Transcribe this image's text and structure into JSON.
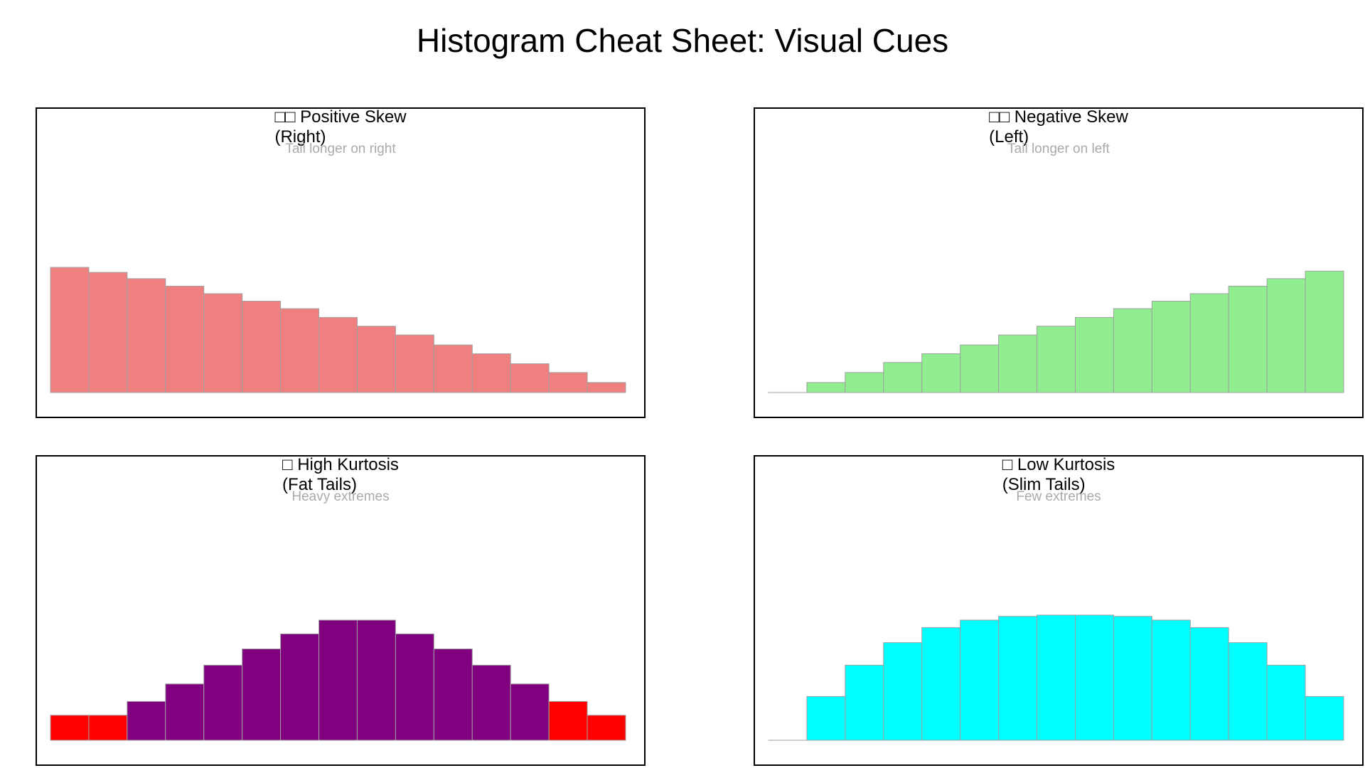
{
  "title": "Histogram Cheat Sheet: Visual Cues",
  "chart_data": [
    {
      "type": "bar",
      "title": "□□ Positive Skew\n(Right)",
      "subtitle": "Tail longer on right",
      "values": [
        100,
        96,
        91,
        85,
        79,
        73,
        67,
        60,
        53,
        46,
        38,
        31,
        23,
        16,
        8
      ],
      "colors": [
        "#f08080"
      ],
      "edgecolor": "#a0a0a0",
      "axes": "off"
    },
    {
      "type": "bar",
      "title": "□□ Negative Skew\n(Left)",
      "subtitle": "Tail longer on left",
      "values": [
        0,
        8,
        16,
        24,
        31,
        38,
        46,
        53,
        60,
        67,
        73,
        79,
        85,
        91,
        97
      ],
      "colors": [
        "#90ee90"
      ],
      "edgecolor": "#a0a0a0",
      "axes": "off"
    },
    {
      "type": "bar",
      "title": "□ High Kurtosis\n(Fat Tails)",
      "subtitle": "Heavy extremes",
      "values": [
        20,
        20,
        31,
        45,
        60,
        73,
        85,
        96,
        96,
        85,
        73,
        60,
        45,
        31,
        20
      ],
      "colors": [
        "#ff0000",
        "#ff0000",
        "#800080",
        "#800080",
        "#800080",
        "#800080",
        "#800080",
        "#800080",
        "#800080",
        "#800080",
        "#800080",
        "#800080",
        "#800080",
        "#ff0000",
        "#ff0000"
      ],
      "edgecolor": "#a0a0a0",
      "axes": "off"
    },
    {
      "type": "bar",
      "title": "□ Low Kurtosis\n(Slim Tails)",
      "subtitle": "Few extremes",
      "values": [
        0,
        35,
        60,
        78,
        90,
        96,
        99,
        100,
        100,
        99,
        96,
        90,
        78,
        60,
        35
      ],
      "colors": [
        "#00ffff"
      ],
      "edgecolor": "#a0a0a0",
      "axes": "off"
    }
  ]
}
